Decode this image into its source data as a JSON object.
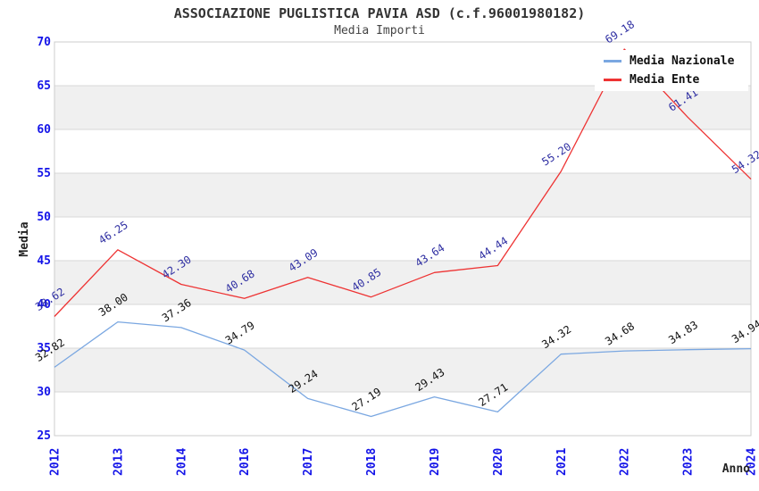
{
  "header": {
    "title": "ASSOCIAZIONE PUGLISTICA PAVIA ASD (c.f.96001980182)",
    "subtitle": "Media Importi"
  },
  "chart_data": {
    "type": "line",
    "title": "ASSOCIAZIONE PUGLISTICA PAVIA ASD (c.f.96001980182)",
    "subtitle": "Media Importi",
    "xlabel": "Anno",
    "ylabel": "Media",
    "categories": [
      "2012",
      "2013",
      "2014",
      "2016",
      "2017",
      "2018",
      "2019",
      "2020",
      "2021",
      "2022",
      "2023",
      "2024"
    ],
    "series": [
      {
        "name": "Media Nazionale",
        "color": "#7aa7e1",
        "label_color": "#111111",
        "values": [
          32.82,
          38.0,
          37.36,
          34.79,
          29.24,
          27.19,
          29.43,
          27.71,
          34.32,
          34.68,
          34.83,
          34.94
        ]
      },
      {
        "name": "Media Ente",
        "color": "#ee3333",
        "label_color": "#2f2fa2",
        "values": [
          38.62,
          46.25,
          42.3,
          40.68,
          43.09,
          40.85,
          43.64,
          44.44,
          55.2,
          69.18,
          61.41,
          54.32
        ]
      }
    ],
    "ylim": [
      25,
      70
    ],
    "ytick_step": 5,
    "grid": "horizontal",
    "legend_position": "top-right",
    "colors": {
      "tick_label": "#1414e8",
      "axis_title": "#222222",
      "band": "#f0f0f0",
      "gridline": "#d7d7d7",
      "border": "#cccccc"
    }
  }
}
